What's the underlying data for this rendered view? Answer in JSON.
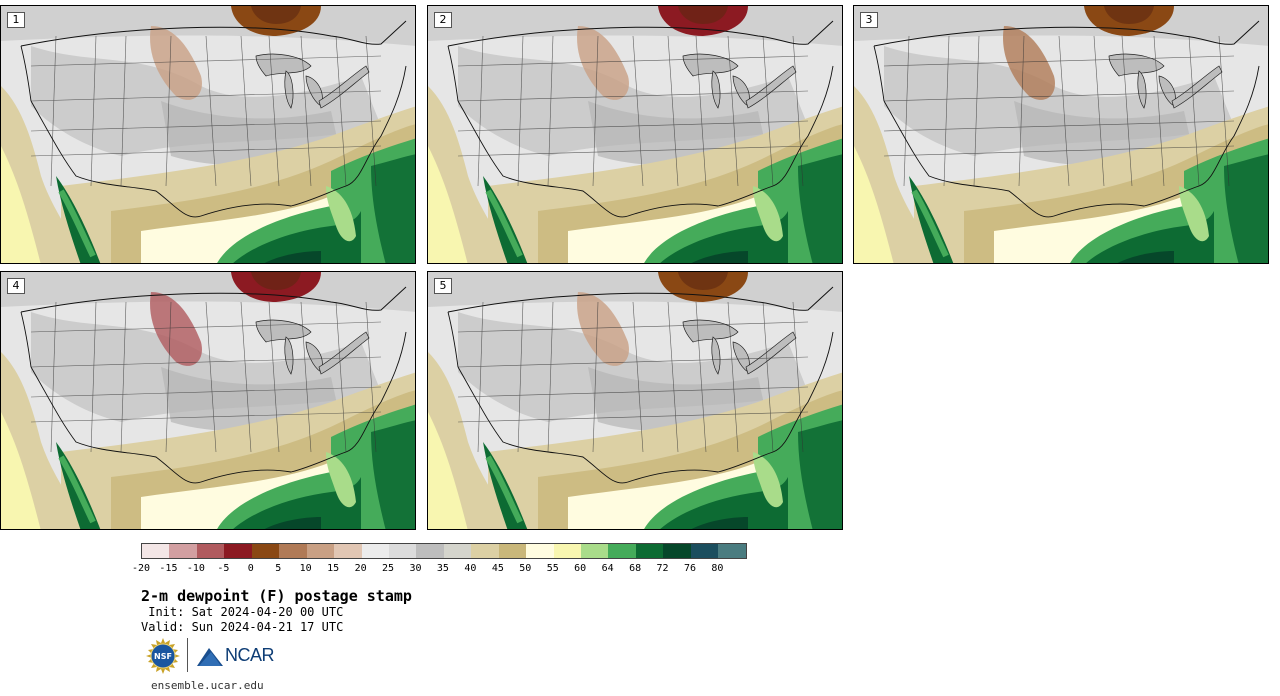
{
  "panels": [
    {
      "label": "1"
    },
    {
      "label": "2"
    },
    {
      "label": "3"
    },
    {
      "label": "4"
    },
    {
      "label": "5"
    }
  ],
  "colorbar": {
    "colors": [
      "#f3e6e6",
      "#d29fa1",
      "#b05a5e",
      "#8c1a22",
      "#8a4814",
      "#b07a56",
      "#c9a084",
      "#e1c6b3",
      "#ececec",
      "#dcdcdc",
      "#bdbdbd",
      "#d4d4cc",
      "#dcd0a4",
      "#c9b77a",
      "#fffce0",
      "#f8f6b0",
      "#a9dc8a",
      "#45ab5a",
      "#0d6b33",
      "#06472a",
      "#1b4e5e",
      "#4a7c80"
    ],
    "tick_labels": [
      "-20",
      "-15",
      "-10",
      "-5",
      "0",
      "5",
      "10",
      "15",
      "20",
      "25",
      "30",
      "35",
      "40",
      "45",
      "50",
      "55",
      "60",
      "64",
      "68",
      "72",
      "76",
      "80"
    ]
  },
  "title": "2-m dewpoint (F) postage stamp",
  "init_line": " Init: Sat 2024-04-20 00 UTC",
  "valid_line": "Valid: Sun 2024-04-21 17 UTC",
  "logos": {
    "nsf": "NSF",
    "ncar": "NCAR"
  },
  "site": "ensemble.ucar.edu",
  "icons": {
    "nsf_logo": "nsf-logo-icon",
    "ncar_logo": "ncar-logo-icon"
  }
}
